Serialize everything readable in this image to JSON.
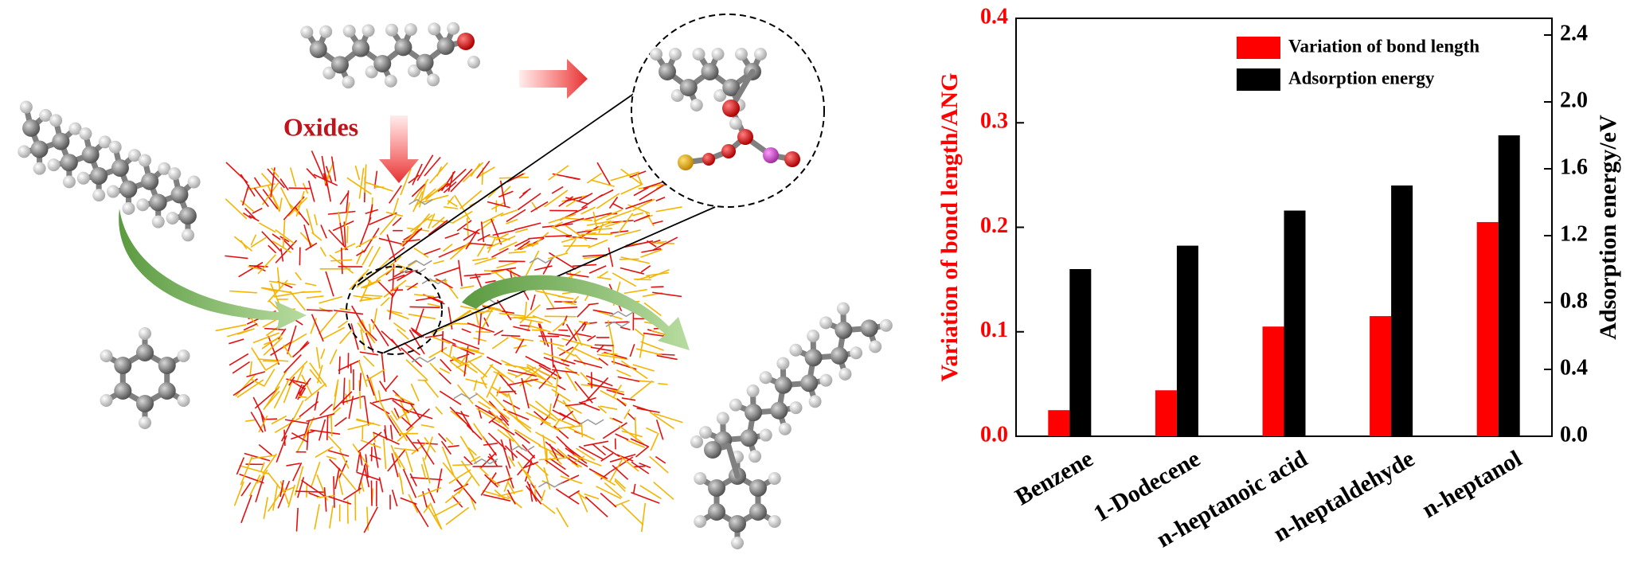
{
  "figure_labels": {
    "oxides": "Oxides"
  },
  "chart_data": {
    "type": "bar",
    "categories": [
      "Benzene",
      "1-Dodecene",
      "n-heptanoic acid",
      "n-heptaldehyde",
      "n-heptanol"
    ],
    "series": [
      {
        "name": "Variation of bond length",
        "color": "#ff0000",
        "values": [
          0.025,
          0.044,
          0.105,
          0.115,
          0.205
        ]
      },
      {
        "name": "Adsorption energy",
        "color": "#000000",
        "axis": "y2",
        "values": [
          1.0,
          1.14,
          1.35,
          1.5,
          1.8
        ]
      }
    ],
    "ylabel": "Variation of bond length/ANG",
    "ylabel_color": "#ff0000",
    "y2label": "Adsorption energy/eV",
    "y2label_color": "#000000",
    "ylim": [
      0,
      0.4
    ],
    "yticks": [
      {
        "value": 0,
        "label": "0.0"
      },
      0.1,
      0.2,
      0.3,
      0.4
    ],
    "y2lim": [
      0,
      2.5
    ],
    "y2ticks": [
      {
        "value": 0,
        "label": "0.0"
      },
      0.4,
      0.8,
      1.2,
      1.6,
      {
        "value": 2,
        "label": "2.0"
      },
      2.4
    ],
    "legend": "upper right"
  }
}
